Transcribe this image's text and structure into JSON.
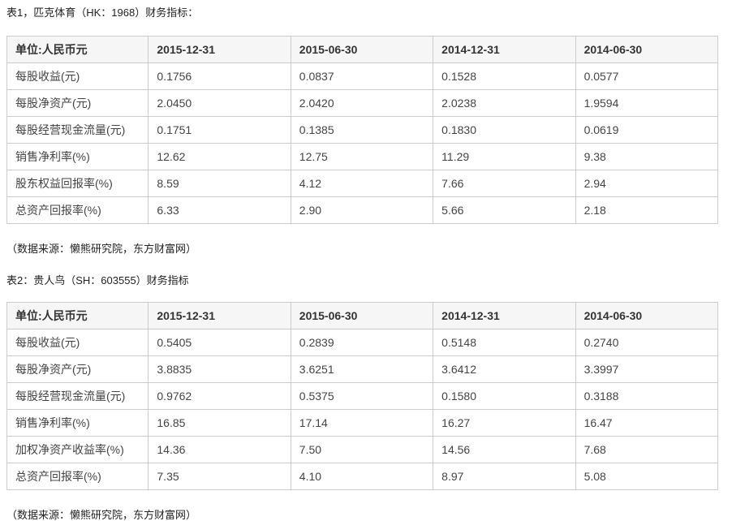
{
  "table1": {
    "title": "表1，匹克体育（HK：1968）财务指标：",
    "headers": [
      "单位:人民币元",
      "2015-12-31",
      "2015-06-30",
      "2014-12-31",
      "2014-06-30"
    ],
    "rows": [
      {
        "label": "每股收益(元)",
        "values": [
          "0.1756",
          "0.0837",
          "0.1528",
          "0.0577"
        ]
      },
      {
        "label": "每股净资产(元)",
        "values": [
          "2.0450",
          "2.0420",
          "2.0238",
          "1.9594"
        ]
      },
      {
        "label": "每股经营现金流量(元)",
        "values": [
          "0.1751",
          "0.1385",
          "0.1830",
          "0.0619"
        ]
      },
      {
        "label": "销售净利率(%)",
        "values": [
          "12.62",
          "12.75",
          "11.29",
          "9.38"
        ]
      },
      {
        "label": "股东权益回报率(%)",
        "values": [
          "8.59",
          "4.12",
          "7.66",
          "2.94"
        ]
      },
      {
        "label": "总资产回报率(%)",
        "values": [
          "6.33",
          "2.90",
          "5.66",
          "2.18"
        ]
      }
    ],
    "source": "（数据来源：懒熊研究院，东方财富网）"
  },
  "table2": {
    "title": "表2：贵人鸟（SH：603555）财务指标",
    "headers": [
      "单位:人民币元",
      "2015-12-31",
      "2015-06-30",
      "2014-12-31",
      "2014-06-30"
    ],
    "rows": [
      {
        "label": "每股收益(元)",
        "values": [
          "0.5405",
          "0.2839",
          "0.5148",
          "0.2740"
        ]
      },
      {
        "label": "每股净资产(元)",
        "values": [
          "3.8835",
          "3.6251",
          "3.6412",
          "3.3997"
        ]
      },
      {
        "label": "每股经营现金流量(元)",
        "values": [
          "0.9762",
          "0.5375",
          "0.1580",
          "0.3188"
        ]
      },
      {
        "label": "销售净利率(%)",
        "values": [
          "16.85",
          "17.14",
          "16.27",
          "16.47"
        ]
      },
      {
        "label": "加权净资产收益率(%)",
        "values": [
          "14.36",
          "7.50",
          "14.56",
          "7.68"
        ]
      },
      {
        "label": "总资产回报率(%)",
        "values": [
          "7.35",
          "4.10",
          "8.97",
          "5.08"
        ]
      }
    ],
    "source": "（数据来源：懒熊研究院，东方财富网）"
  },
  "colors": {
    "header_bg": "#f6f6f6",
    "border": "#cccccc",
    "body_text": "#444444",
    "header_text": "#333333"
  }
}
